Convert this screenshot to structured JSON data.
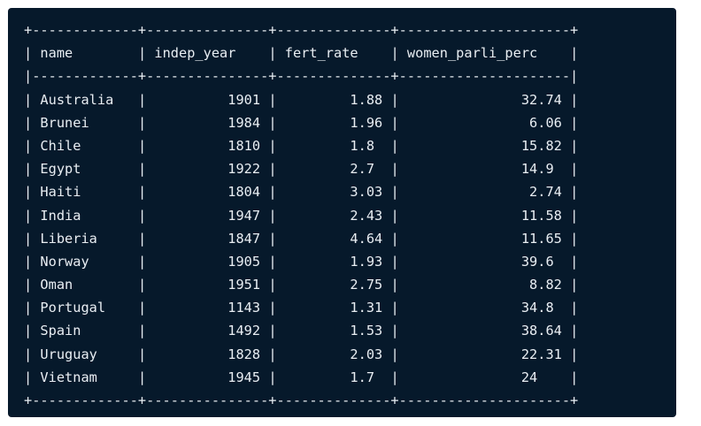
{
  "table": {
    "columns": [
      "name",
      "indep_year",
      "fert_rate",
      "women_parli_perc"
    ],
    "align": [
      "left",
      "right",
      "right",
      "right"
    ],
    "widths": [
      11,
      13,
      12,
      19
    ],
    "rows": [
      [
        "Australia",
        "1901",
        "1.88",
        "32.74"
      ],
      [
        "Brunei",
        "1984",
        "1.96",
        "6.06"
      ],
      [
        "Chile",
        "1810",
        "1.8",
        "15.82"
      ],
      [
        "Egypt",
        "1922",
        "2.7",
        "14.9"
      ],
      [
        "Haiti",
        "1804",
        "3.03",
        "2.74"
      ],
      [
        "India",
        "1947",
        "2.43",
        "11.58"
      ],
      [
        "Liberia",
        "1847",
        "4.64",
        "11.65"
      ],
      [
        "Norway",
        "1905",
        "1.93",
        "39.6"
      ],
      [
        "Oman",
        "1951",
        "2.75",
        "8.82"
      ],
      [
        "Portugal",
        "1143",
        "1.31",
        "34.8"
      ],
      [
        "Spain",
        "1492",
        "1.53",
        "38.64"
      ],
      [
        "Uruguay",
        "1828",
        "2.03",
        "22.31"
      ],
      [
        "Vietnam",
        "1945",
        "1.7",
        "24"
      ]
    ]
  }
}
